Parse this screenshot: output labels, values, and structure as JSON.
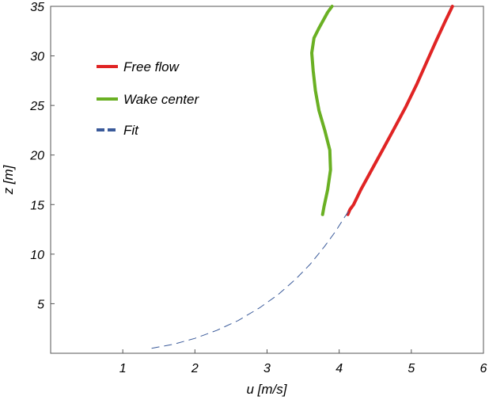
{
  "chart_data": {
    "type": "line",
    "title": "",
    "xlabel": "u [m/s]",
    "ylabel": "z [m]",
    "xlim": [
      0,
      6
    ],
    "ylim": [
      0,
      35
    ],
    "x_ticks": [
      1,
      2,
      3,
      4,
      5,
      6
    ],
    "y_ticks": [
      5,
      10,
      15,
      20,
      25,
      30,
      35
    ],
    "grid": false,
    "legend_position": "upper-left",
    "series": [
      {
        "name": "Free flow",
        "color": "#e02424",
        "style": "solid",
        "points": [
          [
            4.12,
            14.0
          ],
          [
            4.15,
            14.5
          ],
          [
            4.2,
            15.0
          ],
          [
            4.3,
            16.5
          ],
          [
            4.45,
            18.5
          ],
          [
            4.6,
            20.5
          ],
          [
            4.75,
            22.5
          ],
          [
            4.92,
            24.8
          ],
          [
            5.08,
            27.2
          ],
          [
            5.22,
            29.5
          ],
          [
            5.35,
            31.6
          ],
          [
            5.47,
            33.5
          ],
          [
            5.57,
            35.0
          ]
        ]
      },
      {
        "name": "Wake center",
        "color": "#6ab023",
        "style": "solid",
        "points": [
          [
            3.77,
            14.0
          ],
          [
            3.79,
            14.8
          ],
          [
            3.84,
            16.5
          ],
          [
            3.88,
            18.5
          ],
          [
            3.87,
            20.5
          ],
          [
            3.8,
            22.5
          ],
          [
            3.72,
            24.5
          ],
          [
            3.67,
            26.5
          ],
          [
            3.64,
            28.5
          ],
          [
            3.62,
            30.3
          ],
          [
            3.65,
            31.8
          ],
          [
            3.72,
            32.8
          ],
          [
            3.78,
            33.6
          ],
          [
            3.84,
            34.4
          ],
          [
            3.9,
            35.0
          ]
        ]
      },
      {
        "name": "Fit",
        "color": "#3a5a9a",
        "style": "dashed",
        "points": [
          [
            1.4,
            0.5
          ],
          [
            1.7,
            0.9
          ],
          [
            2.0,
            1.5
          ],
          [
            2.3,
            2.3
          ],
          [
            2.6,
            3.3
          ],
          [
            2.9,
            4.6
          ],
          [
            3.15,
            5.9
          ],
          [
            3.4,
            7.5
          ],
          [
            3.6,
            9.0
          ],
          [
            3.8,
            10.8
          ],
          [
            3.95,
            12.3
          ],
          [
            4.08,
            13.8
          ],
          [
            4.15,
            14.5
          ]
        ]
      }
    ]
  }
}
